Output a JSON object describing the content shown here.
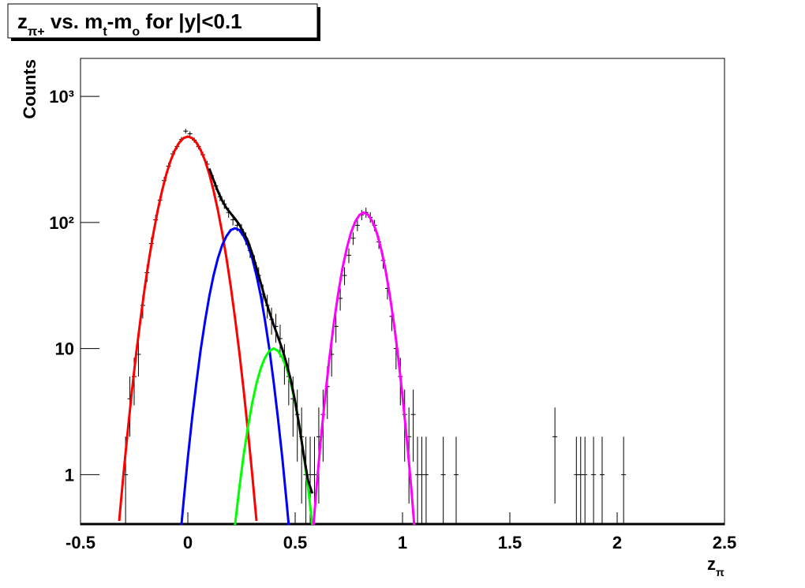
{
  "chart_data": {
    "type": "line",
    "title": [
      "z",
      "π+",
      " vs. m",
      "t",
      "-m",
      "o",
      " for |y|<0.1"
    ],
    "ylabel": "Counts",
    "xlabel": [
      "z",
      "π"
    ],
    "xlim": [
      -0.5,
      2.5
    ],
    "xticks": [
      -0.5,
      0,
      0.5,
      1,
      1.5,
      2,
      2.5
    ],
    "ylim": [
      0.4,
      2000
    ],
    "yscale": "log",
    "yticks": [
      1,
      10,
      {
        "value": 100,
        "label": "10²"
      },
      {
        "value": 1000,
        "label": "10³"
      }
    ],
    "series": [
      {
        "type": "errorbar",
        "color": "#000000",
        "x": [
          -0.29,
          -0.27,
          -0.25,
          -0.23,
          -0.21,
          -0.19,
          -0.17,
          -0.15,
          -0.13,
          -0.11,
          -0.09,
          -0.07,
          -0.05,
          -0.03,
          -0.01,
          0.01,
          0.03,
          0.05,
          0.07,
          0.09,
          0.11,
          0.13,
          0.15,
          0.17,
          0.19,
          0.21,
          0.23,
          0.25,
          0.27,
          0.29,
          0.31,
          0.33,
          0.35,
          0.37,
          0.39,
          0.41,
          0.43,
          0.45,
          0.47,
          0.49,
          0.51,
          0.53,
          0.55,
          0.57,
          0.59,
          0.61,
          0.63,
          0.65,
          0.67,
          0.69,
          0.71,
          0.73,
          0.75,
          0.77,
          0.79,
          0.81,
          0.83,
          0.85,
          0.87,
          0.89,
          0.91,
          0.93,
          0.95,
          0.97,
          0.99,
          1.01,
          1.03,
          1.05,
          1.07,
          1.09,
          1.11,
          1.19,
          1.25,
          1.71,
          1.81,
          1.83,
          1.85,
          1.89,
          1.93,
          2.03
        ],
        "values": [
          1,
          4,
          6,
          9,
          22,
          40,
          68,
          105,
          150,
          215,
          280,
          350,
          400,
          455,
          530,
          505,
          450,
          400,
          345,
          290,
          235,
          195,
          160,
          140,
          120,
          105,
          95,
          88,
          75,
          60,
          48,
          38,
          27,
          22,
          17,
          15,
          12,
          8,
          6,
          4,
          3,
          2,
          1,
          1,
          1,
          2,
          3,
          5,
          9,
          15,
          25,
          38,
          55,
          75,
          95,
          115,
          120,
          110,
          95,
          70,
          50,
          30,
          18,
          10,
          6,
          3,
          2,
          3,
          1,
          1,
          1,
          1,
          1,
          2,
          1,
          1,
          1,
          1,
          1,
          1
        ],
        "errors": [
          1,
          2,
          2.45,
          3,
          4.69,
          6.32,
          8.25,
          10.25,
          12.25,
          14.66,
          16.73,
          18.71,
          20,
          21.33,
          23.02,
          22.47,
          21.21,
          20,
          18.57,
          17.03,
          15.33,
          13.96,
          12.65,
          11.83,
          10.95,
          10.25,
          9.75,
          9.38,
          8.66,
          7.75,
          6.93,
          6.16,
          5.2,
          4.69,
          4.12,
          3.87,
          3.46,
          2.83,
          2.45,
          2,
          1.73,
          1.41,
          1,
          1,
          1,
          1.41,
          1.73,
          2.24,
          3,
          3.87,
          5,
          6.16,
          7.42,
          8.66,
          9.75,
          10.72,
          10.95,
          10.49,
          9.75,
          8.37,
          7.07,
          5.48,
          4.24,
          3.16,
          2.45,
          1.73,
          1.41,
          1.73,
          1,
          1,
          1,
          1,
          1,
          1.41,
          1,
          1,
          1,
          1,
          1,
          1
        ]
      },
      {
        "type": "line",
        "color": "#ff0000",
        "x": [
          -0.32,
          -0.3,
          -0.28,
          -0.26,
          -0.24,
          -0.22,
          -0.2,
          -0.18,
          -0.16,
          -0.14,
          -0.12,
          -0.1,
          -0.08,
          -0.06,
          -0.04,
          -0.02,
          0,
          0.02,
          0.04,
          0.06,
          0.08,
          0.1,
          0.12,
          0.14,
          0.16,
          0.18,
          0.2,
          0.22,
          0.24,
          0.26,
          0.28,
          0.3,
          0.32
        ],
        "values": [
          0.43,
          1.0,
          2.2,
          4.7,
          9.3,
          17.4,
          31,
          52,
          83,
          125,
          179,
          242,
          310,
          375,
          430,
          467,
          480,
          467,
          430,
          375,
          310,
          242,
          179,
          125,
          83,
          52,
          31,
          17.4,
          9.3,
          4.7,
          2.2,
          1.0,
          0.43
        ]
      },
      {
        "type": "line",
        "color": "#0000ff",
        "x": [
          -0.04,
          -0.02,
          0,
          0.02,
          0.04,
          0.06,
          0.08,
          0.1,
          0.12,
          0.14,
          0.16,
          0.18,
          0.2,
          0.22,
          0.24,
          0.26,
          0.28,
          0.3,
          0.32,
          0.34,
          0.36,
          0.38,
          0.4,
          0.42,
          0.44,
          0.46,
          0.48
        ],
        "values": [
          0.26,
          0.61,
          1.36,
          2.8,
          5.4,
          9.8,
          16.5,
          26,
          38,
          52,
          66,
          78,
          87,
          90,
          87,
          78,
          66,
          52,
          38,
          26,
          16.5,
          9.8,
          5.4,
          2.8,
          1.36,
          0.61,
          0.26
        ]
      },
      {
        "type": "line",
        "color": "#00ff00",
        "x": [
          0.2,
          0.22,
          0.24,
          0.26,
          0.28,
          0.3,
          0.32,
          0.34,
          0.36,
          0.38,
          0.4,
          0.42,
          0.44,
          0.46,
          0.48,
          0.5,
          0.52,
          0.54,
          0.56,
          0.58,
          0.6
        ],
        "values": [
          0.19,
          0.4,
          0.79,
          1.43,
          2.4,
          3.7,
          5.3,
          7.0,
          8.5,
          9.6,
          10,
          9.6,
          8.5,
          7.0,
          5.3,
          3.7,
          2.4,
          1.43,
          0.79,
          0.4,
          0.19
        ]
      },
      {
        "type": "line",
        "color": "#ff00ff",
        "x": [
          0.58,
          0.6,
          0.62,
          0.64,
          0.66,
          0.68,
          0.7,
          0.72,
          0.74,
          0.76,
          0.78,
          0.8,
          0.82,
          0.84,
          0.86,
          0.88,
          0.9,
          0.92,
          0.94,
          0.96,
          0.98,
          1.0,
          1.02,
          1.04,
          1.06
        ],
        "values": [
          0.31,
          0.81,
          1.93,
          4.2,
          8.5,
          15.9,
          27,
          43,
          62,
          83,
          102,
          115,
          120,
          115,
          102,
          83,
          62,
          43,
          27,
          15.9,
          8.5,
          4.2,
          1.93,
          0.81,
          0.31
        ]
      },
      {
        "type": "line",
        "color": "#000000",
        "x": [
          0.1,
          0.12,
          0.14,
          0.16,
          0.18,
          0.2,
          0.22,
          0.24,
          0.26,
          0.28,
          0.3,
          0.32,
          0.34,
          0.36,
          0.38,
          0.4,
          0.42,
          0.44,
          0.46,
          0.48,
          0.5,
          0.52,
          0.54,
          0.56,
          0.58
        ],
        "values": [
          268,
          217,
          177,
          149,
          130,
          118,
          107,
          96,
          83,
          71,
          56.7,
          43.7,
          33,
          25,
          19.4,
          15.4,
          12.4,
          9.9,
          7.6,
          5.6,
          3.8,
          2.4,
          1.43,
          0.9,
          0.71
        ]
      }
    ]
  }
}
